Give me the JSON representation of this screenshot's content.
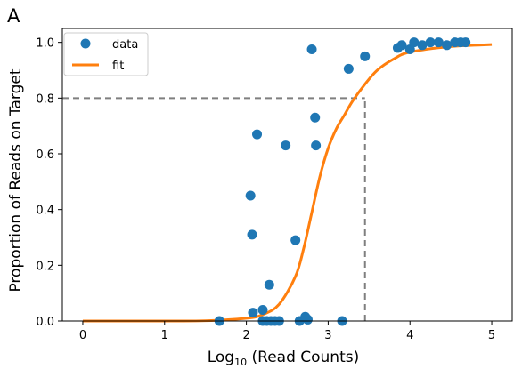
{
  "panel_label": "A",
  "chart_data": {
    "type": "scatter",
    "xlabel_main": "Log",
    "xlabel_sub": "10",
    "xlabel_rest": " (Read Counts)",
    "ylabel": "Proportion of Reads on Target",
    "xlim": [
      -0.25,
      5.25
    ],
    "ylim": [
      0.0,
      1.05
    ],
    "x_ticks": [
      0,
      1,
      2,
      3,
      4,
      5
    ],
    "y_ticks": [
      0.0,
      0.2,
      0.4,
      0.6,
      0.8,
      1.0
    ],
    "x_tick_labels": [
      "0",
      "1",
      "2",
      "3",
      "4",
      "5"
    ],
    "y_tick_labels": [
      "0.0",
      "0.2",
      "0.4",
      "0.6",
      "0.8",
      "1.0"
    ],
    "grid": false,
    "legend_position": "top-left",
    "legend": [
      "data",
      "fit"
    ],
    "colors": {
      "data": "#1f77b4",
      "fit": "#ff7f0e",
      "reference": "#7f7f7f"
    },
    "series": [
      {
        "name": "data",
        "kind": "scatter",
        "points": [
          [
            1.67,
            0.0
          ],
          [
            2.05,
            0.45
          ],
          [
            2.07,
            0.31
          ],
          [
            2.08,
            0.03
          ],
          [
            2.13,
            0.67
          ],
          [
            2.2,
            0.04
          ],
          [
            2.2,
            0.0
          ],
          [
            2.25,
            0.0
          ],
          [
            2.28,
            0.13
          ],
          [
            2.3,
            0.0
          ],
          [
            2.35,
            0.0
          ],
          [
            2.4,
            0.0
          ],
          [
            2.48,
            0.63
          ],
          [
            2.6,
            0.29
          ],
          [
            2.65,
            0.0
          ],
          [
            2.72,
            0.015
          ],
          [
            2.75,
            0.005
          ],
          [
            2.8,
            0.975
          ],
          [
            2.84,
            0.73
          ],
          [
            2.85,
            0.63
          ],
          [
            3.17,
            0.0
          ],
          [
            3.25,
            0.905
          ],
          [
            3.45,
            0.95
          ],
          [
            3.85,
            0.98
          ],
          [
            3.9,
            0.99
          ],
          [
            4.0,
            0.975
          ],
          [
            4.05,
            1.0
          ],
          [
            4.15,
            0.99
          ],
          [
            4.25,
            1.0
          ],
          [
            4.35,
            1.0
          ],
          [
            4.45,
            0.99
          ],
          [
            4.55,
            1.0
          ],
          [
            4.62,
            1.0
          ],
          [
            4.68,
            1.0
          ]
        ]
      },
      {
        "name": "fit",
        "kind": "line",
        "points": [
          [
            0.0,
            0.0
          ],
          [
            1.0,
            0.0
          ],
          [
            1.5,
            0.001
          ],
          [
            2.0,
            0.01
          ],
          [
            2.2,
            0.023
          ],
          [
            2.4,
            0.06
          ],
          [
            2.6,
            0.16
          ],
          [
            2.7,
            0.26
          ],
          [
            2.8,
            0.39
          ],
          [
            2.9,
            0.52
          ],
          [
            3.0,
            0.62
          ],
          [
            3.1,
            0.69
          ],
          [
            3.2,
            0.74
          ],
          [
            3.3,
            0.79
          ],
          [
            3.45,
            0.85
          ],
          [
            3.6,
            0.9
          ],
          [
            3.8,
            0.94
          ],
          [
            4.0,
            0.965
          ],
          [
            4.5,
            0.985
          ],
          [
            5.0,
            0.992
          ]
        ]
      }
    ],
    "reference_lines": [
      {
        "type": "horizontal",
        "y": 0.8,
        "x_from": -0.25,
        "x_to": 3.45
      },
      {
        "type": "vertical",
        "x": 3.45,
        "y_from": 0.0,
        "y_to": 0.8
      }
    ]
  }
}
